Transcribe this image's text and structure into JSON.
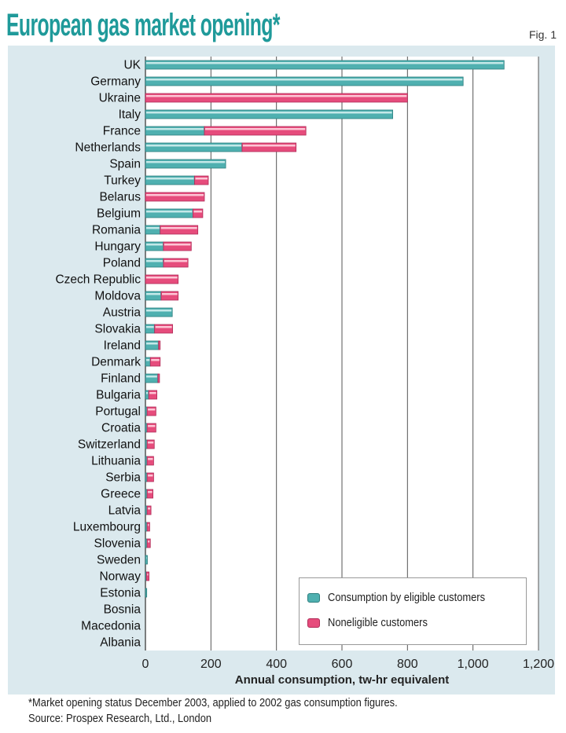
{
  "header": {
    "title": "European gas market opening*",
    "fig_label": "Fig. 1"
  },
  "footnote": "*Market opening status December 2003, applied to 2002 gas consumption figures.",
  "source": "Source: Prospex Research, Ltd., London",
  "colors": {
    "eligible": "#4fb0b0",
    "noneligible": "#e64c7c",
    "background": "#dbe9ee",
    "title": "#1f9a9a"
  },
  "chart_data": {
    "type": "bar",
    "orientation": "horizontal",
    "stacked": true,
    "xlabel": "Annual consumption, tw-hr equivalent",
    "xlim": [
      0,
      1200
    ],
    "xticks": [
      "0",
      "200",
      "400",
      "600",
      "800",
      "1,000",
      "1,200"
    ],
    "grid": true,
    "legend_position": "bottom-right",
    "categories": [
      "UK",
      "Germany",
      "Ukraine",
      "Italy",
      "France",
      "Netherlands",
      "Spain",
      "Turkey",
      "Belarus",
      "Belgium",
      "Romania",
      "Hungary",
      "Poland",
      "Czech Republic",
      "Moldova",
      "Austria",
      "Slovakia",
      "Ireland",
      "Denmark",
      "Finland",
      "Bulgaria",
      "Portugal",
      "Croatia",
      "Switzerland",
      "Lithuania",
      "Serbia",
      "Greece",
      "Latvia",
      "Luxembourg",
      "Slovenia",
      "Sweden",
      "Norway",
      "Estonia",
      "Bosnia",
      "Macedonia",
      "Albania"
    ],
    "series": [
      {
        "name": "Consumption by eligible customers",
        "values": [
          1095,
          970,
          0,
          755,
          180,
          295,
          245,
          150,
          0,
          145,
          45,
          55,
          55,
          0,
          48,
          82,
          28,
          40,
          15,
          38,
          10,
          5,
          5,
          5,
          5,
          5,
          5,
          5,
          5,
          5,
          6,
          3,
          4,
          0,
          0,
          0
        ]
      },
      {
        "name": "Noneligible customers",
        "values": [
          0,
          0,
          800,
          0,
          310,
          165,
          0,
          42,
          180,
          30,
          115,
          85,
          75,
          100,
          52,
          0,
          55,
          5,
          30,
          5,
          25,
          27,
          27,
          22,
          20,
          20,
          18,
          12,
          8,
          10,
          0,
          8,
          0,
          0,
          0,
          0
        ]
      }
    ]
  }
}
